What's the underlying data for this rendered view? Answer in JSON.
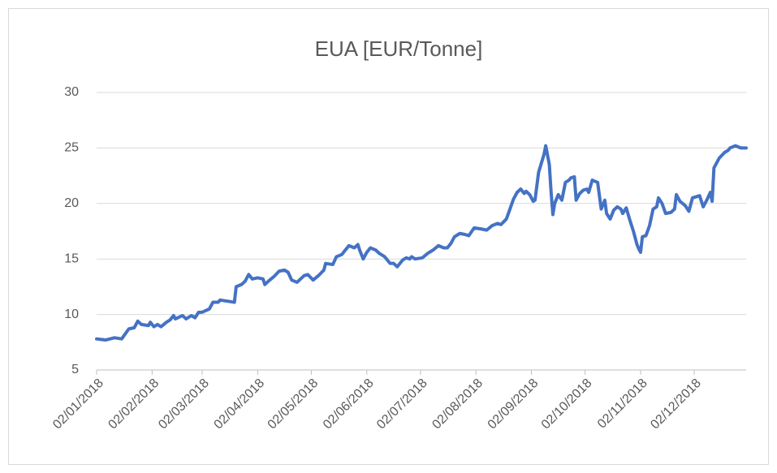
{
  "chart_data": {
    "type": "line",
    "title": "EUA [EUR/Tonne]",
    "x": [
      "02/01/2018",
      "07/01/2018",
      "12/01/2018",
      "16/01/2018",
      "20/01/2018",
      "23/01/2018",
      "25/01/2018",
      "27/01/2018",
      "31/01/2018",
      "01/02/2018",
      "03/02/2018",
      "05/02/2018",
      "07/02/2018",
      "10/02/2018",
      "12/02/2018",
      "14/02/2018",
      "15/02/2018",
      "19/02/2018",
      "21/02/2018",
      "24/02/2018",
      "26/02/2018",
      "28/02/2018",
      "02/03/2018",
      "06/03/2018",
      "08/03/2018",
      "11/03/2018",
      "12/03/2018",
      "16/03/2018",
      "20/03/2018",
      "21/03/2018",
      "24/03/2018",
      "26/03/2018",
      "28/03/2018",
      "30/03/2018",
      "02/04/2018",
      "05/04/2018",
      "06/04/2018",
      "08/04/2018",
      "11/04/2018",
      "14/04/2018",
      "17/04/2018",
      "19/04/2018",
      "21/04/2018",
      "24/04/2018",
      "28/04/2018",
      "30/04/2018",
      "03/05/2018",
      "06/05/2018",
      "09/05/2018",
      "10/05/2018",
      "14/05/2018",
      "16/05/2018",
      "19/05/2018",
      "21/05/2018",
      "23/05/2018",
      "26/05/2018",
      "28/05/2018",
      "29/05/2018",
      "31/05/2018",
      "02/06/2018",
      "04/06/2018",
      "07/06/2018",
      "09/06/2018",
      "12/06/2018",
      "15/06/2018",
      "17/06/2018",
      "19/06/2018",
      "22/06/2018",
      "24/06/2018",
      "26/06/2018",
      "27/06/2018",
      "29/06/2018",
      "03/07/2018",
      "06/07/2018",
      "09/07/2018",
      "12/07/2018",
      "15/07/2018",
      "17/07/2018",
      "19/07/2018",
      "21/07/2018",
      "24/07/2018",
      "27/07/2018",
      "29/07/2018",
      "01/08/2018",
      "05/08/2018",
      "08/08/2018",
      "11/08/2018",
      "14/08/2018",
      "16/08/2018",
      "19/08/2018",
      "21/08/2018",
      "23/08/2018",
      "25/08/2018",
      "27/08/2018",
      "29/08/2018",
      "30/08/2018",
      "01/09/2018",
      "03/09/2018",
      "04/09/2018",
      "06/09/2018",
      "09/09/2018",
      "10/09/2018",
      "12/09/2018",
      "13/09/2018",
      "14/09/2018",
      "15/09/2018",
      "17/09/2018",
      "19/09/2018",
      "21/09/2018",
      "23/09/2018",
      "24/09/2018",
      "26/09/2018",
      "27/09/2018",
      "29/09/2018",
      "01/10/2018",
      "03/10/2018",
      "04/10/2018",
      "06/10/2018",
      "09/10/2018",
      "11/10/2018",
      "13/10/2018",
      "14/10/2018",
      "16/10/2018",
      "18/10/2018",
      "20/10/2018",
      "22/10/2018",
      "23/10/2018",
      "25/10/2018",
      "27/10/2018",
      "29/10/2018",
      "31/10/2018",
      "01/11/2018",
      "02/11/2018",
      "03/11/2018",
      "05/11/2018",
      "07/11/2018",
      "09/11/2018",
      "11/11/2018",
      "12/11/2018",
      "14/11/2018",
      "16/11/2018",
      "19/11/2018",
      "21/11/2018",
      "22/11/2018",
      "24/11/2018",
      "27/11/2018",
      "29/11/2018",
      "01/12/2018",
      "03/12/2018",
      "05/12/2018",
      "07/12/2018",
      "09/12/2018",
      "11/12/2018",
      "12/12/2018",
      "13/12/2018",
      "16/12/2018",
      "19/12/2018",
      "21/12/2018",
      "22/12/2018",
      "25/12/2018",
      "28/12/2018",
      "31/12/2018"
    ],
    "series": [
      {
        "name": "EUA",
        "color": "#4472c4",
        "values": [
          7.8,
          7.7,
          7.9,
          7.8,
          8.7,
          8.8,
          9.4,
          9.1,
          9.0,
          9.3,
          8.9,
          9.1,
          8.9,
          9.3,
          9.5,
          9.9,
          9.6,
          9.9,
          9.6,
          9.9,
          9.7,
          10.2,
          10.2,
          10.5,
          11.1,
          11.1,
          11.3,
          11.2,
          11.1,
          12.5,
          12.7,
          13.0,
          13.6,
          13.2,
          13.3,
          13.2,
          12.7,
          13.0,
          13.4,
          13.9,
          14.0,
          13.8,
          13.1,
          12.9,
          13.5,
          13.6,
          13.1,
          13.5,
          14.0,
          14.6,
          14.5,
          15.2,
          15.4,
          15.8,
          16.2,
          16.0,
          16.3,
          15.8,
          15.0,
          15.6,
          16.0,
          15.8,
          15.5,
          15.2,
          14.6,
          14.6,
          14.3,
          14.9,
          15.1,
          15.0,
          15.2,
          15.0,
          15.1,
          15.5,
          15.8,
          16.2,
          16.0,
          16.0,
          16.4,
          17.0,
          17.3,
          17.2,
          17.1,
          17.8,
          17.7,
          17.6,
          18.0,
          18.2,
          18.1,
          18.6,
          19.5,
          20.4,
          21.0,
          21.3,
          20.9,
          21.1,
          20.8,
          20.2,
          20.3,
          22.8,
          24.4,
          25.2,
          23.5,
          21.0,
          19.0,
          20.0,
          20.8,
          20.3,
          21.9,
          22.1,
          22.3,
          22.4,
          20.3,
          20.9,
          21.2,
          21.3,
          21.0,
          22.1,
          21.9,
          19.5,
          20.3,
          19.1,
          18.6,
          19.4,
          19.7,
          19.5,
          19.1,
          19.6,
          18.5,
          17.5,
          16.3,
          15.9,
          15.6,
          17.0,
          17.1,
          18.0,
          19.5,
          19.7,
          20.5,
          20.0,
          19.1,
          19.2,
          19.5,
          20.8,
          20.2,
          19.8,
          19.3,
          20.5,
          20.6,
          20.7,
          19.7,
          20.3,
          21.0,
          20.2,
          23.2,
          24.1,
          24.6,
          24.8,
          25.0,
          25.2,
          25.0,
          25.0
        ]
      }
    ],
    "xlim": [
      "02/01/2018",
      "31/12/2018"
    ],
    "xticks": [
      "02/01/2018",
      "02/02/2018",
      "02/03/2018",
      "02/04/2018",
      "02/05/2018",
      "02/06/2018",
      "02/07/2018",
      "02/08/2018",
      "02/09/2018",
      "02/10/2018",
      "02/11/2018",
      "02/12/2018"
    ],
    "ylim": [
      5,
      30
    ],
    "yticks": [
      5,
      10,
      15,
      20,
      25,
      30
    ],
    "grid": true
  }
}
